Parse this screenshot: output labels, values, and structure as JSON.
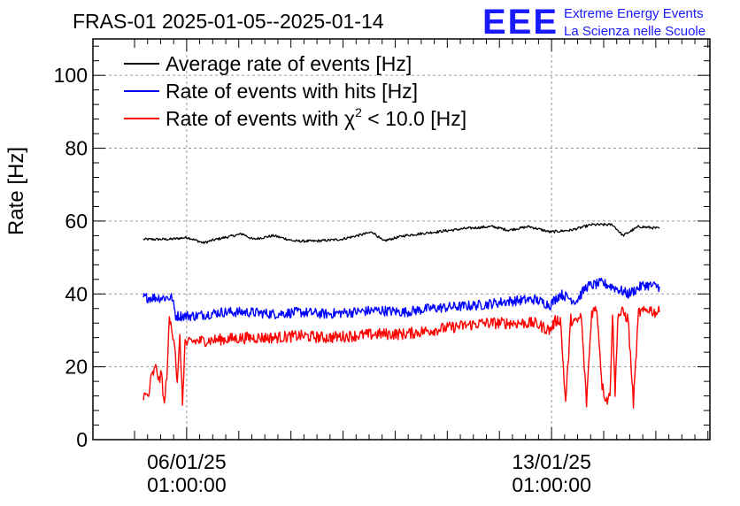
{
  "chart_data": {
    "type": "line",
    "title": "FRAS-01 2025-01-05--2025-01-14",
    "ylabel": "Rate [Hz]",
    "xlabel": "",
    "ylim": [
      0,
      110
    ],
    "y_ticks": [
      "0",
      "20",
      "40",
      "60",
      "80",
      "100"
    ],
    "x_range_days": [
      "2025-01-05 05:00",
      "2025-01-14 06:00"
    ],
    "x_ticks": [
      {
        "date": "06/01/25",
        "time": "01:00:00",
        "day_offset": 0.83
      },
      {
        "date": "13/01/25",
        "time": "01:00:00",
        "day_offset": 7.83
      }
    ],
    "grid": true,
    "legend_position": "top-left",
    "series": [
      {
        "name": "Average rate of events [Hz]",
        "color": "#000000",
        "x_days": [
          0.0,
          0.5,
          0.85,
          1.15,
          1.4,
          1.9,
          2.1,
          2.5,
          2.9,
          3.3,
          3.8,
          4.4,
          4.6,
          5.0,
          5.6,
          6.2,
          6.7,
          7.0,
          7.4,
          7.8,
          8.2,
          8.6,
          9.0,
          9.2,
          9.5,
          9.9
        ],
        "values": [
          55,
          55,
          55.5,
          54,
          55,
          56.5,
          55,
          56,
          54.5,
          54.5,
          55,
          57,
          54.5,
          56,
          57,
          58,
          58.5,
          57.5,
          58.5,
          57,
          57.5,
          59,
          59,
          56,
          58.5,
          58
        ]
      },
      {
        "name": "Rate of events with hits [Hz]",
        "color": "#0000ff",
        "x_days": [
          0.0,
          0.55,
          0.62,
          1.0,
          1.5,
          2.0,
          2.5,
          3.0,
          3.5,
          4.0,
          4.5,
          5.0,
          5.5,
          6.0,
          6.5,
          7.0,
          7.5,
          7.8,
          8.0,
          8.3,
          8.5,
          8.8,
          9.0,
          9.3,
          9.6,
          9.9
        ],
        "values": [
          39,
          39,
          34,
          34,
          35,
          35,
          34.5,
          35,
          34.5,
          35,
          35.5,
          35,
          36,
          36.5,
          37,
          38,
          38.5,
          37,
          40,
          38,
          42,
          43,
          42,
          40,
          42.5,
          42
        ]
      },
      {
        "name": "Rate of events with χ² < 10.0 [Hz]",
        "legend_math": {
          "prefix": "Rate of events with ",
          "symbol": "χ",
          "exponent": "2",
          "suffix": " < 10.0 [Hz]"
        },
        "color": "#ff0000",
        "x_days": [
          0.0,
          0.1,
          0.15,
          0.25,
          0.3,
          0.35,
          0.4,
          0.45,
          0.5,
          0.55,
          0.6,
          0.65,
          0.7,
          0.75,
          0.8,
          0.85,
          0.9,
          1.0,
          1.5,
          2.0,
          2.5,
          3.0,
          3.5,
          4.0,
          4.5,
          5.0,
          5.5,
          6.0,
          6.5,
          7.0,
          7.5,
          7.8,
          7.9,
          8.0,
          8.1,
          8.2,
          8.3,
          8.4,
          8.5,
          8.6,
          8.7,
          8.8,
          8.85,
          8.9,
          8.95,
          9.0,
          9.05,
          9.1,
          9.2,
          9.3,
          9.4,
          9.5,
          9.6,
          9.7,
          9.8,
          9.9
        ],
        "values": [
          12,
          12,
          17,
          20,
          16,
          18,
          9,
          18,
          33,
          30,
          27,
          15,
          28,
          10,
          27,
          26,
          27,
          27,
          27.5,
          28,
          28,
          28.5,
          28,
          28.5,
          29,
          29,
          30,
          31,
          32,
          32,
          32,
          30,
          32.5,
          33,
          10,
          33,
          32,
          34,
          10,
          35,
          36,
          15,
          12,
          11,
          12,
          35,
          12,
          34,
          35,
          33,
          10,
          35,
          35,
          36,
          35,
          35
        ]
      }
    ]
  },
  "logo": {
    "text": "EEE",
    "line1": "Extreme Energy Events",
    "line2": "La Scienza nelle Scuole",
    "color": "#1a1aff"
  }
}
